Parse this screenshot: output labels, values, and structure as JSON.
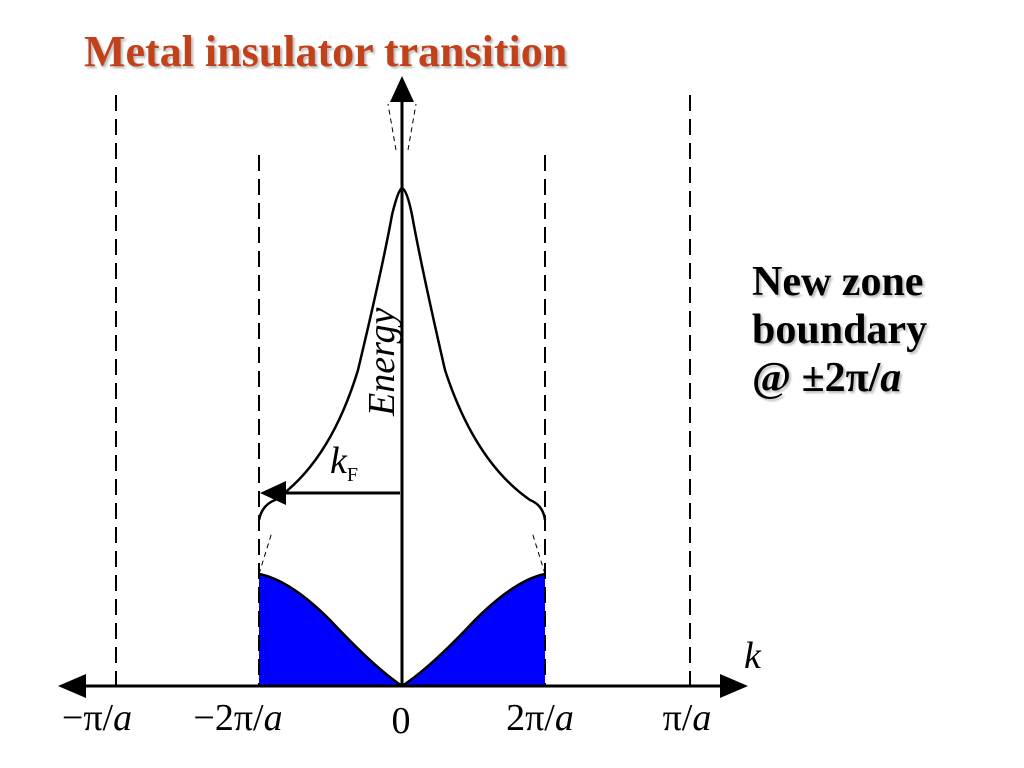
{
  "title": "Metal insulator transition",
  "note": {
    "line1": "New zone",
    "line2": "boundary",
    "line3_prefix": "@ ±2π/",
    "line3_var": "a"
  },
  "axes": {
    "x_name": "k",
    "y_name": "Energy",
    "fermi": {
      "main": "k",
      "sub": "F"
    }
  },
  "ticks": [
    {
      "num": "−π/",
      "var": "a"
    },
    {
      "num": "−2π/",
      "var": "a"
    },
    {
      "num": "0",
      "var": ""
    },
    {
      "num": "2π/",
      "var": "a"
    },
    {
      "num": "π/",
      "var": "a"
    }
  ],
  "colors": {
    "title": "#c0411a",
    "filled_band": "#0000ff",
    "line": "#000000"
  }
}
